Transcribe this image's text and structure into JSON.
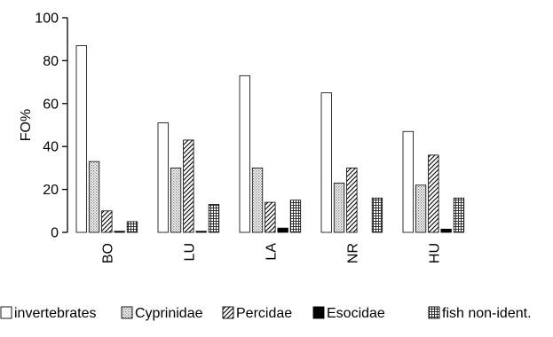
{
  "chart_data": {
    "type": "bar",
    "ylabel": "FO%",
    "ylim": [
      0,
      100
    ],
    "yticks": [
      0,
      20,
      40,
      60,
      80,
      100
    ],
    "categories": [
      "BO",
      "LU",
      "LA",
      "NR",
      "HU"
    ],
    "series": [
      {
        "name": "invertebrates",
        "values": [
          87,
          51,
          73,
          65,
          47
        ],
        "pattern": "white"
      },
      {
        "name": "Cyprinidae",
        "values": [
          33,
          30,
          30,
          23,
          22
        ],
        "pattern": "dots"
      },
      {
        "name": "Percidae",
        "values": [
          10,
          43,
          14,
          30,
          36
        ],
        "pattern": "diagonal"
      },
      {
        "name": "Esocidae",
        "values": [
          0.5,
          0.5,
          2,
          0,
          1.5
        ],
        "pattern": "black"
      },
      {
        "name": "fish non-ident.",
        "values": [
          5,
          13,
          15,
          16,
          16
        ],
        "pattern": "cross"
      }
    ],
    "legend": "bottom",
    "grid": false
  }
}
